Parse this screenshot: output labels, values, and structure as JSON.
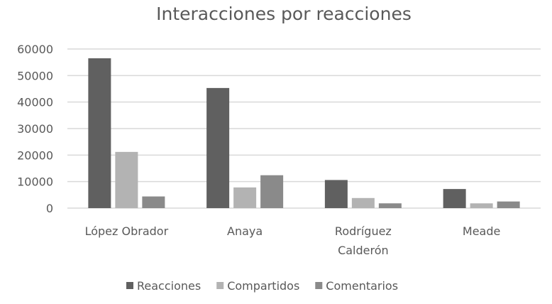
{
  "chart_data": {
    "type": "bar",
    "title": "Interacciones por reacciones",
    "xlabel": "",
    "ylabel": "",
    "ylim": [
      0,
      60000
    ],
    "yticks": [
      0,
      10000,
      20000,
      30000,
      40000,
      50000,
      60000
    ],
    "grid": true,
    "legend_position": "bottom",
    "categories": [
      [
        "López Obrador"
      ],
      [
        "Anaya"
      ],
      [
        "Rodríguez",
        "Calderón"
      ],
      [
        "Meade"
      ]
    ],
    "series": [
      {
        "name": "Reacciones",
        "color": "#606060",
        "values": [
          56500,
          45300,
          10600,
          7200
        ]
      },
      {
        "name": "Compartidos",
        "color": "#b3b3b3",
        "values": [
          21200,
          7800,
          3800,
          1800
        ]
      },
      {
        "name": "Comentarios",
        "color": "#8a8a8a",
        "values": [
          4400,
          12400,
          1800,
          2500
        ]
      }
    ]
  }
}
